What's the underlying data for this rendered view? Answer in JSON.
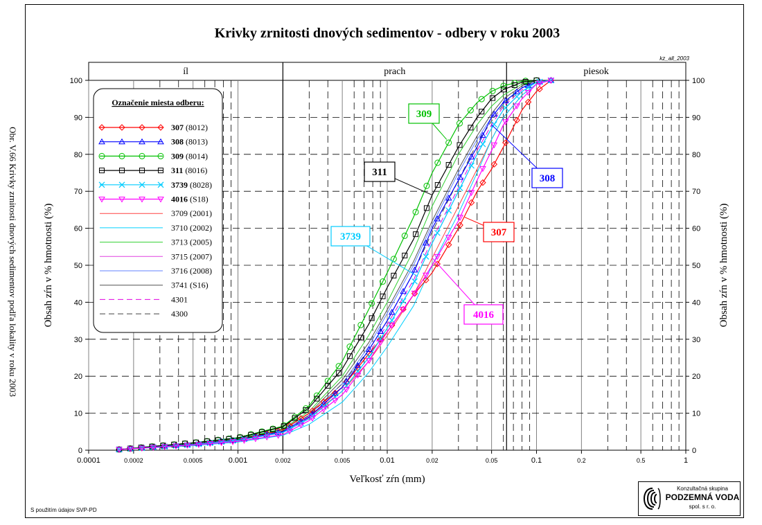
{
  "side_caption": "Obr. V.66 Krivky zrnitosti dnových sedimentov podľa lokality v roku 2003",
  "code_label": "kz_all_2003",
  "credit_note": "S použitím údajov SVP-PD",
  "logo": {
    "subtitle": "Konzultačná skupina",
    "name": "PODZEMNÁ VODA",
    "legal": "spol. s r. o."
  },
  "legend_title": "Označenie miesta odberu:",
  "chart_data": {
    "type": "line",
    "title": "Krivky zrnitosti dnových sedimentov - odbery v roku 2003",
    "xlabel": "Veľkosť zŕn (mm)",
    "ylabel": "Obsah zŕn v % hmotnosti (%)",
    "x_scale": "log",
    "xlim": [
      0.0001,
      1
    ],
    "ylim": [
      0,
      100
    ],
    "x_tick_labels": [
      "0.0001",
      "0.0002",
      "0.0005",
      "0.001",
      "0.002",
      "0.005",
      "0.01",
      "0.02",
      "0.05",
      "0.1",
      "0.2",
      "0.5",
      "1"
    ],
    "x_ticks": [
      0.0001,
      0.0002,
      0.0005,
      0.001,
      0.002,
      0.005,
      0.01,
      0.02,
      0.05,
      0.1,
      0.2,
      0.5,
      1
    ],
    "y_ticks": [
      0,
      10,
      20,
      30,
      40,
      50,
      60,
      70,
      80,
      90,
      100
    ],
    "grid": true,
    "zones": [
      {
        "label": "íl",
        "from": 0.0001,
        "to": 0.002
      },
      {
        "label": "prach",
        "from": 0.002,
        "to": 0.063
      },
      {
        "label": "piesok",
        "from": 0.063,
        "to": 1
      }
    ],
    "legend_position": "top-left",
    "series": [
      {
        "name": "307",
        "code": "(8012)",
        "color": "#ff0000",
        "marker": "diamond",
        "dash": "",
        "bold": true,
        "points": [
          [
            0.00016,
            0.2
          ],
          [
            0.0005,
            1.6
          ],
          [
            0.001,
            2.8
          ],
          [
            0.002,
            5.5
          ],
          [
            0.003,
            10
          ],
          [
            0.005,
            17
          ],
          [
            0.0075,
            26
          ],
          [
            0.01,
            32
          ],
          [
            0.015,
            42
          ],
          [
            0.02,
            48
          ],
          [
            0.03,
            60
          ],
          [
            0.04,
            70
          ],
          [
            0.05,
            76
          ],
          [
            0.06,
            82
          ],
          [
            0.08,
            92
          ],
          [
            0.1,
            97
          ],
          [
            0.125,
            100
          ]
        ]
      },
      {
        "name": "308",
        "code": "(8013)",
        "color": "#0000ff",
        "marker": "triangle",
        "dash": "",
        "bold": true,
        "points": [
          [
            0.00016,
            0.2
          ],
          [
            0.0005,
            1.6
          ],
          [
            0.001,
            2.8
          ],
          [
            0.002,
            5
          ],
          [
            0.003,
            9
          ],
          [
            0.005,
            17
          ],
          [
            0.0075,
            27
          ],
          [
            0.01,
            35
          ],
          [
            0.015,
            48
          ],
          [
            0.02,
            60
          ],
          [
            0.03,
            73
          ],
          [
            0.04,
            82
          ],
          [
            0.05,
            90
          ],
          [
            0.06,
            94
          ],
          [
            0.08,
            98
          ],
          [
            0.1,
            99.5
          ],
          [
            0.125,
            100
          ]
        ]
      },
      {
        "name": "309",
        "code": "(8014)",
        "color": "#00c000",
        "marker": "circle",
        "dash": "",
        "bold": true,
        "points": [
          [
            0.00016,
            0.2
          ],
          [
            0.0005,
            2
          ],
          [
            0.001,
            3.4
          ],
          [
            0.002,
            6.5
          ],
          [
            0.003,
            12
          ],
          [
            0.005,
            24
          ],
          [
            0.0075,
            38
          ],
          [
            0.01,
            48
          ],
          [
            0.015,
            63
          ],
          [
            0.02,
            75
          ],
          [
            0.03,
            88
          ],
          [
            0.04,
            94
          ],
          [
            0.05,
            97
          ],
          [
            0.06,
            98.5
          ],
          [
            0.08,
            99.8
          ],
          [
            0.1,
            100
          ]
        ]
      },
      {
        "name": "311",
        "code": "(8016)",
        "color": "#000000",
        "marker": "square",
        "dash": "",
        "bold": true,
        "points": [
          [
            0.00016,
            0.2
          ],
          [
            0.0005,
            2
          ],
          [
            0.001,
            3.3
          ],
          [
            0.002,
            6.3
          ],
          [
            0.003,
            11.5
          ],
          [
            0.005,
            22
          ],
          [
            0.0075,
            34
          ],
          [
            0.01,
            44
          ],
          [
            0.015,
            57
          ],
          [
            0.02,
            69
          ],
          [
            0.03,
            82
          ],
          [
            0.04,
            90
          ],
          [
            0.05,
            95
          ],
          [
            0.06,
            97.5
          ],
          [
            0.08,
            99.5
          ],
          [
            0.1,
            100
          ]
        ]
      },
      {
        "name": "3739",
        "code": "(8028)",
        "color": "#00ccff",
        "marker": "x",
        "dash": "",
        "bold": true,
        "points": [
          [
            0.00016,
            0.2
          ],
          [
            0.0005,
            1.5
          ],
          [
            0.001,
            2.7
          ],
          [
            0.002,
            4.8
          ],
          [
            0.003,
            8.5
          ],
          [
            0.005,
            16
          ],
          [
            0.0075,
            25
          ],
          [
            0.01,
            33
          ],
          [
            0.015,
            45
          ],
          [
            0.02,
            56
          ],
          [
            0.03,
            70
          ],
          [
            0.04,
            80
          ],
          [
            0.05,
            87
          ],
          [
            0.06,
            92
          ],
          [
            0.08,
            97
          ],
          [
            0.1,
            99.5
          ],
          [
            0.125,
            100
          ]
        ]
      },
      {
        "name": "4016",
        "code": "(S18)",
        "color": "#ff00ff",
        "marker": "invtriangle",
        "dash": "",
        "bold": true,
        "points": [
          [
            0.00016,
            0.2
          ],
          [
            0.0005,
            1.4
          ],
          [
            0.001,
            2.4
          ],
          [
            0.002,
            4.2
          ],
          [
            0.003,
            8
          ],
          [
            0.005,
            15
          ],
          [
            0.0075,
            24
          ],
          [
            0.01,
            32
          ],
          [
            0.015,
            42
          ],
          [
            0.02,
            50
          ],
          [
            0.03,
            62
          ],
          [
            0.04,
            73
          ],
          [
            0.05,
            81
          ],
          [
            0.06,
            88
          ],
          [
            0.08,
            95
          ],
          [
            0.1,
            99
          ],
          [
            0.125,
            100
          ]
        ]
      },
      {
        "name": "3709",
        "code": "(2001)",
        "color": "#ff4040",
        "marker": "none",
        "dash": "",
        "bold": false,
        "points": [
          [
            0.00016,
            0.2
          ],
          [
            0.0005,
            1.5
          ],
          [
            0.001,
            2.6
          ],
          [
            0.002,
            5
          ],
          [
            0.003,
            9
          ],
          [
            0.005,
            16
          ],
          [
            0.0075,
            24
          ],
          [
            0.01,
            31
          ],
          [
            0.015,
            42
          ],
          [
            0.02,
            52
          ],
          [
            0.03,
            66
          ],
          [
            0.04,
            76
          ],
          [
            0.05,
            84
          ],
          [
            0.06,
            90
          ],
          [
            0.08,
            96
          ],
          [
            0.1,
            99
          ],
          [
            0.125,
            100
          ]
        ]
      },
      {
        "name": "3710",
        "code": "(2002)",
        "color": "#00d0ff",
        "marker": "none",
        "dash": "",
        "bold": false,
        "points": [
          [
            0.00016,
            0.2
          ],
          [
            0.0005,
            1.2
          ],
          [
            0.001,
            2.2
          ],
          [
            0.002,
            4
          ],
          [
            0.003,
            7
          ],
          [
            0.005,
            13
          ],
          [
            0.0075,
            21
          ],
          [
            0.01,
            28
          ],
          [
            0.015,
            39
          ],
          [
            0.02,
            50
          ],
          [
            0.03,
            64
          ],
          [
            0.04,
            75
          ],
          [
            0.05,
            84
          ],
          [
            0.06,
            90
          ],
          [
            0.08,
            96
          ],
          [
            0.1,
            99
          ],
          [
            0.125,
            100
          ]
        ]
      },
      {
        "name": "3713",
        "code": "(2005)",
        "color": "#30d030",
        "marker": "none",
        "dash": "",
        "bold": false,
        "points": [
          [
            0.00016,
            0.2
          ],
          [
            0.0005,
            1.8
          ],
          [
            0.001,
            3.1
          ],
          [
            0.002,
            5.8
          ],
          [
            0.003,
            10.5
          ],
          [
            0.005,
            20
          ],
          [
            0.0075,
            31
          ],
          [
            0.01,
            40
          ],
          [
            0.015,
            54
          ],
          [
            0.02,
            66
          ],
          [
            0.03,
            80
          ],
          [
            0.04,
            88
          ],
          [
            0.05,
            93
          ],
          [
            0.06,
            96
          ],
          [
            0.08,
            99
          ],
          [
            0.1,
            100
          ]
        ]
      },
      {
        "name": "3715",
        "code": "(2007)",
        "color": "#e040e0",
        "marker": "none",
        "dash": "",
        "bold": false,
        "points": [
          [
            0.00016,
            0.2
          ],
          [
            0.0005,
            1.5
          ],
          [
            0.001,
            2.6
          ],
          [
            0.002,
            4.7
          ],
          [
            0.003,
            8.5
          ],
          [
            0.005,
            16
          ],
          [
            0.0075,
            25
          ],
          [
            0.01,
            33
          ],
          [
            0.015,
            45
          ],
          [
            0.02,
            56
          ],
          [
            0.03,
            70
          ],
          [
            0.04,
            80
          ],
          [
            0.05,
            87
          ],
          [
            0.06,
            92
          ],
          [
            0.08,
            97
          ],
          [
            0.1,
            99.5
          ],
          [
            0.125,
            100
          ]
        ]
      },
      {
        "name": "3716",
        "code": "(2008)",
        "color": "#6080ff",
        "marker": "none",
        "dash": "",
        "bold": false,
        "points": [
          [
            0.00016,
            0.2
          ],
          [
            0.0005,
            1.6
          ],
          [
            0.001,
            2.8
          ],
          [
            0.002,
            5.2
          ],
          [
            0.003,
            9.5
          ],
          [
            0.005,
            18
          ],
          [
            0.0075,
            28
          ],
          [
            0.01,
            37
          ],
          [
            0.015,
            50
          ],
          [
            0.02,
            61
          ],
          [
            0.03,
            75
          ],
          [
            0.04,
            84
          ],
          [
            0.05,
            90
          ],
          [
            0.06,
            94
          ],
          [
            0.08,
            98
          ],
          [
            0.1,
            100
          ]
        ]
      },
      {
        "name": "3741",
        "code": "(S16)",
        "color": "#505050",
        "marker": "none",
        "dash": "",
        "bold": false,
        "points": [
          [
            0.00016,
            0.2
          ],
          [
            0.0005,
            1.7
          ],
          [
            0.001,
            3
          ],
          [
            0.002,
            5.6
          ],
          [
            0.003,
            10
          ],
          [
            0.005,
            19
          ],
          [
            0.0075,
            29
          ],
          [
            0.01,
            38
          ],
          [
            0.015,
            51
          ],
          [
            0.02,
            62
          ],
          [
            0.03,
            76
          ],
          [
            0.04,
            85
          ],
          [
            0.05,
            91
          ],
          [
            0.06,
            95
          ],
          [
            0.08,
            98.5
          ],
          [
            0.1,
            100
          ]
        ]
      },
      {
        "name": "4301",
        "code": "",
        "color": "#e000e0",
        "marker": "none",
        "dash": "8,5",
        "bold": false,
        "points": [
          [
            0.00016,
            0.2
          ],
          [
            0.0005,
            1.5
          ],
          [
            0.001,
            2.6
          ],
          [
            0.002,
            4.8
          ],
          [
            0.003,
            8.8
          ],
          [
            0.005,
            17
          ],
          [
            0.0075,
            26
          ],
          [
            0.01,
            34
          ],
          [
            0.015,
            46
          ],
          [
            0.02,
            57
          ],
          [
            0.03,
            71
          ],
          [
            0.04,
            81
          ],
          [
            0.05,
            88
          ],
          [
            0.06,
            93
          ],
          [
            0.08,
            97.5
          ],
          [
            0.1,
            99.5
          ],
          [
            0.125,
            100
          ]
        ]
      },
      {
        "name": "4300",
        "code": "",
        "color": "#404040",
        "marker": "none",
        "dash": "8,5",
        "bold": false,
        "points": [
          [
            0.00016,
            0.2
          ],
          [
            0.0005,
            1.6
          ],
          [
            0.001,
            2.8
          ],
          [
            0.002,
            5.2
          ],
          [
            0.003,
            9.4
          ],
          [
            0.005,
            18
          ],
          [
            0.0075,
            27
          ],
          [
            0.01,
            35
          ],
          [
            0.015,
            48
          ],
          [
            0.02,
            59
          ],
          [
            0.03,
            73
          ],
          [
            0.04,
            83
          ],
          [
            0.05,
            89
          ],
          [
            0.06,
            93.5
          ],
          [
            0.08,
            98
          ],
          [
            0.1,
            100
          ]
        ]
      }
    ],
    "callouts": [
      {
        "label": "309",
        "color": "#00c000",
        "at": [
          0.025,
          84
        ]
      },
      {
        "label": "311",
        "color": "#000000",
        "at": [
          0.02,
          69
        ]
      },
      {
        "label": "308",
        "color": "#0000ff",
        "at": [
          0.05,
          88
        ]
      },
      {
        "label": "3739",
        "color": "#00ccff",
        "at": [
          0.016,
          47
        ]
      },
      {
        "label": "307",
        "color": "#ff0000",
        "at": [
          0.033,
          63
        ]
      },
      {
        "label": "4016",
        "color": "#ff00ff",
        "at": [
          0.02,
          52
        ]
      }
    ]
  }
}
